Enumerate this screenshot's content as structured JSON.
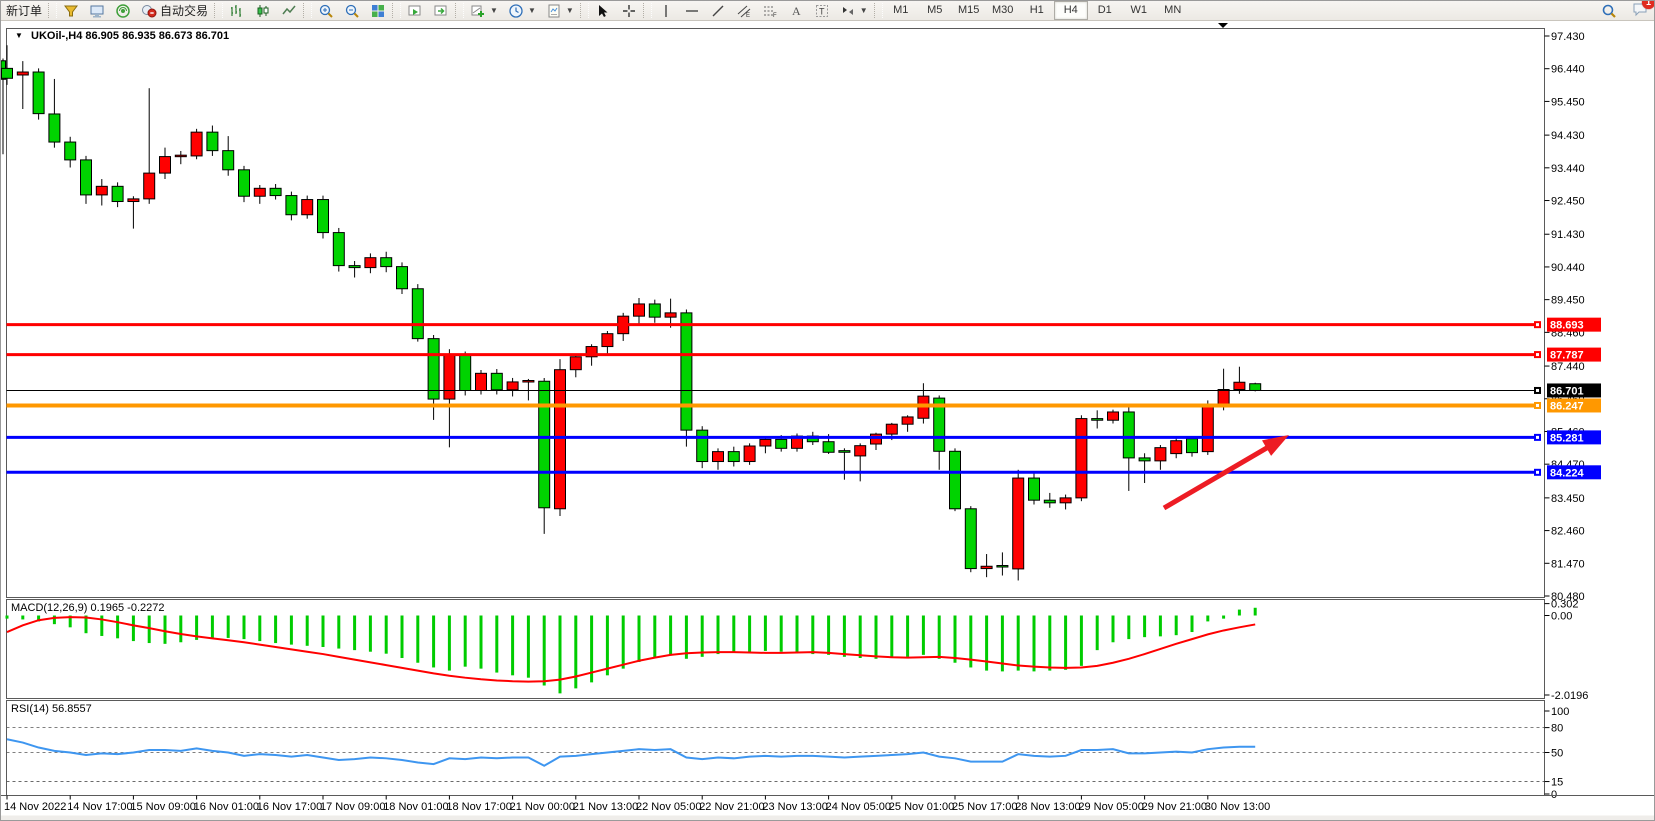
{
  "toolbar": {
    "new_order_label": "新订单",
    "autotrade_label": "自动交易",
    "icons_left": [
      "funnel-icon",
      "monitor-icon",
      "signal-icon",
      "autotrade-icon"
    ],
    "icons_chart": [
      "bar-chart-icon",
      "candle-chart-icon",
      "line-chart-icon"
    ],
    "icons_zoom": [
      "zoom-in-icon",
      "zoom-out-icon",
      "tile-windows-icon"
    ],
    "icons_profile": [
      "profile-charts-icon",
      "profile-next-icon"
    ],
    "icons_objects": [
      "add-indicator-icon",
      "period-clock-icon",
      "template-icon"
    ],
    "icons_cursor": [
      "cursor-icon",
      "crosshair-icon"
    ],
    "icons_draw": [
      "vertical-line-icon",
      "horizontal-line-icon",
      "trendline-icon",
      "channel-icon",
      "fibonacci-icon",
      "text-icon",
      "text-label-icon",
      "arrows-icon"
    ],
    "timeframes": [
      "M1",
      "M5",
      "M15",
      "M30",
      "H1",
      "H4",
      "D1",
      "W1",
      "MN"
    ],
    "active_timeframe": "H4",
    "search_icon": "search-icon",
    "chat_icon": "chat-icon",
    "chat_badge": "1"
  },
  "chart_data": {
    "type": "candlestick",
    "symbol_period": "UKOil-,H4",
    "ohlc_text": "86.905 86.935 86.673 86.701",
    "colors": {
      "up_candle": "#FF0000",
      "down_candle": "#00D300",
      "candle_border": "#000000",
      "macd_hist": "#00CC00",
      "macd_signal": "#FF0000",
      "rsi_line": "#3E96F0",
      "arrow": "#ED1C24"
    },
    "price_axis": {
      "range": [
        80.48,
        97.43
      ],
      "ticks": [
        "97.430",
        "96.440",
        "95.450",
        "94.430",
        "93.440",
        "92.450",
        "91.430",
        "90.440",
        "89.450",
        "88.460",
        "87.440",
        "86.450",
        "85.460",
        "84.470",
        "83.450",
        "82.460",
        "81.470",
        "80.480"
      ]
    },
    "hlines": [
      {
        "price": 88.693,
        "label": "88.693",
        "color": "#FF0000",
        "width": 3
      },
      {
        "price": 87.787,
        "label": "87.787",
        "color": "#FF0000",
        "width": 3
      },
      {
        "price": 86.701,
        "label": "86.701",
        "color": "#000000",
        "width": 1
      },
      {
        "price": 86.247,
        "label": "86.247",
        "color": "#FF9800",
        "width": 4
      },
      {
        "price": 85.281,
        "label": "85.281",
        "color": "#0000FF",
        "width": 3
      },
      {
        "price": 84.224,
        "label": "84.224",
        "color": "#0000FF",
        "width": 3
      }
    ],
    "time_axis": [
      "14 Nov 2022",
      "14 Nov 17:00",
      "15 Nov 09:00",
      "16 Nov 01:00",
      "16 Nov 17:00",
      "17 Nov 09:00",
      "18 Nov 01:00",
      "18 Nov 17:00",
      "21 Nov 00:00",
      "21 Nov 13:00",
      "22 Nov 05:00",
      "22 Nov 21:00",
      "23 Nov 13:00",
      "24 Nov 05:00",
      "25 Nov 01:00",
      "25 Nov 17:00",
      "28 Nov 13:00",
      "29 Nov 05:00",
      "29 Nov 21:00",
      "30 Nov 13:00"
    ],
    "clipped_candle": [
      96.68,
      96.75,
      93.85,
      96.12
    ],
    "candles": [
      [
        96.45,
        97.15,
        95.95,
        96.15
      ],
      [
        96.25,
        96.67,
        95.22,
        96.34
      ],
      [
        96.34,
        96.45,
        94.9,
        95.08
      ],
      [
        95.07,
        96.13,
        94.05,
        94.22
      ],
      [
        94.22,
        94.38,
        93.45,
        93.68
      ],
      [
        93.68,
        93.8,
        92.35,
        92.62
      ],
      [
        92.62,
        93.1,
        92.3,
        92.88
      ],
      [
        92.88,
        93.0,
        92.25,
        92.42
      ],
      [
        92.42,
        92.58,
        91.6,
        92.5
      ],
      [
        92.5,
        95.85,
        92.35,
        93.28
      ],
      [
        93.28,
        94.05,
        93.1,
        93.78
      ],
      [
        93.78,
        93.95,
        93.55,
        93.8
      ],
      [
        93.8,
        94.62,
        93.7,
        94.52
      ],
      [
        94.52,
        94.72,
        93.8,
        93.96
      ],
      [
        93.96,
        94.4,
        93.2,
        93.38
      ],
      [
        93.38,
        93.5,
        92.4,
        92.58
      ],
      [
        92.58,
        92.92,
        92.35,
        92.82
      ],
      [
        92.82,
        92.95,
        92.48,
        92.6
      ],
      [
        92.6,
        92.72,
        91.85,
        92.02
      ],
      [
        92.02,
        92.6,
        91.9,
        92.48
      ],
      [
        92.48,
        92.6,
        91.3,
        91.48
      ],
      [
        91.48,
        91.62,
        90.3,
        90.48
      ],
      [
        90.48,
        90.62,
        90.12,
        90.42
      ],
      [
        90.42,
        90.85,
        90.25,
        90.72
      ],
      [
        90.72,
        90.9,
        90.28,
        90.45
      ],
      [
        90.45,
        90.58,
        89.62,
        89.78
      ],
      [
        89.78,
        89.92,
        88.18,
        88.27
      ],
      [
        88.27,
        88.38,
        85.81,
        86.44
      ],
      [
        86.44,
        87.95,
        84.98,
        87.8
      ],
      [
        87.8,
        87.88,
        86.55,
        86.7
      ],
      [
        86.7,
        87.32,
        86.58,
        87.22
      ],
      [
        87.22,
        87.35,
        86.58,
        86.72
      ],
      [
        86.72,
        87.08,
        86.52,
        86.96
      ],
      [
        86.96,
        87.05,
        86.4,
        86.98
      ],
      [
        86.98,
        87.08,
        82.36,
        83.15
      ],
      [
        83.12,
        87.65,
        82.9,
        87.33
      ],
      [
        87.33,
        87.82,
        87.1,
        87.72
      ],
      [
        87.72,
        88.1,
        87.45,
        88.03
      ],
      [
        88.03,
        88.5,
        87.8,
        88.42
      ],
      [
        88.42,
        89.05,
        88.2,
        88.95
      ],
      [
        88.95,
        89.5,
        88.7,
        89.32
      ],
      [
        89.32,
        89.45,
        88.75,
        88.92
      ],
      [
        88.92,
        89.48,
        88.6,
        89.05
      ],
      [
        89.05,
        89.15,
        85.0,
        85.5
      ],
      [
        85.5,
        85.62,
        84.35,
        84.55
      ],
      [
        84.55,
        84.95,
        84.3,
        84.85
      ],
      [
        84.85,
        85.0,
        84.4,
        84.55
      ],
      [
        84.55,
        85.1,
        84.45,
        85.02
      ],
      [
        85.02,
        85.3,
        84.8,
        85.22
      ],
      [
        85.22,
        85.35,
        84.85,
        84.95
      ],
      [
        84.95,
        85.4,
        84.85,
        85.32
      ],
      [
        85.32,
        85.45,
        85.05,
        85.15
      ],
      [
        85.15,
        85.38,
        84.78,
        84.83
      ],
      [
        84.88,
        84.95,
        84.0,
        84.83
      ],
      [
        84.72,
        85.1,
        83.95,
        85.03
      ],
      [
        85.08,
        85.42,
        84.9,
        85.38
      ],
      [
        85.38,
        85.72,
        85.2,
        85.68
      ],
      [
        85.68,
        85.95,
        85.45,
        85.9
      ],
      [
        85.86,
        86.92,
        85.7,
        86.53
      ],
      [
        86.47,
        86.55,
        84.3,
        84.86
      ],
      [
        84.86,
        84.95,
        83.05,
        83.12
      ],
      [
        83.12,
        83.2,
        81.2,
        81.31
      ],
      [
        81.31,
        81.75,
        81.05,
        81.38
      ],
      [
        81.38,
        81.8,
        81.1,
        81.35
      ],
      [
        81.3,
        84.3,
        80.95,
        84.05
      ],
      [
        84.05,
        84.2,
        83.25,
        83.38
      ],
      [
        83.38,
        83.6,
        83.15,
        83.3
      ],
      [
        83.3,
        83.55,
        83.1,
        83.45
      ],
      [
        83.45,
        85.95,
        83.35,
        85.85
      ],
      [
        85.85,
        86.1,
        85.55,
        85.8
      ],
      [
        85.8,
        86.12,
        85.7,
        86.05
      ],
      [
        86.05,
        86.2,
        83.66,
        84.66
      ],
      [
        84.66,
        84.8,
        83.9,
        84.57
      ],
      [
        84.57,
        85.05,
        84.3,
        84.97
      ],
      [
        84.79,
        85.25,
        84.65,
        85.18
      ],
      [
        85.24,
        85.32,
        84.7,
        84.82
      ],
      [
        84.85,
        86.4,
        84.75,
        86.22
      ],
      [
        86.22,
        87.36,
        86.1,
        86.73
      ],
      [
        86.73,
        87.42,
        86.6,
        86.95
      ],
      [
        86.905,
        86.935,
        86.673,
        86.701
      ]
    ],
    "indicators": {
      "macd": {
        "label": "MACD(12,26,9)",
        "values_text": "0.1965 -0.2272",
        "axis": [
          "0.302",
          "0.00",
          "-2.0196"
        ],
        "histogram": [
          -0.08,
          -0.1,
          -0.15,
          -0.22,
          -0.3,
          -0.45,
          -0.52,
          -0.58,
          -0.65,
          -0.7,
          -0.72,
          -0.68,
          -0.62,
          -0.58,
          -0.57,
          -0.6,
          -0.65,
          -0.7,
          -0.74,
          -0.77,
          -0.8,
          -0.84,
          -0.88,
          -0.92,
          -0.97,
          -1.08,
          -1.2,
          -1.32,
          -1.4,
          -1.3,
          -1.35,
          -1.45,
          -1.52,
          -1.58,
          -1.78,
          -1.98,
          -1.85,
          -1.7,
          -1.52,
          -1.35,
          -1.18,
          -1.08,
          -1.02,
          -1.1,
          -1.05,
          -0.98,
          -0.95,
          -0.92,
          -0.9,
          -0.92,
          -0.95,
          -0.98,
          -1.0,
          -1.05,
          -1.08,
          -1.1,
          -1.08,
          -1.05,
          -1.0,
          -1.1,
          -1.2,
          -1.32,
          -1.4,
          -1.42,
          -1.4,
          -1.42,
          -1.4,
          -1.38,
          -1.28,
          -0.88,
          -0.68,
          -0.6,
          -0.55,
          -0.53,
          -0.5,
          -0.42,
          -0.15,
          -0.08,
          0.15,
          0.1965
        ],
        "signal": [
          -0.42,
          -0.25,
          -0.12,
          -0.06,
          -0.04,
          -0.05,
          -0.1,
          -0.17,
          -0.25,
          -0.32,
          -0.4,
          -0.47,
          -0.53,
          -0.58,
          -0.63,
          -0.68,
          -0.74,
          -0.8,
          -0.86,
          -0.92,
          -0.98,
          -1.05,
          -1.12,
          -1.19,
          -1.26,
          -1.33,
          -1.4,
          -1.47,
          -1.53,
          -1.58,
          -1.62,
          -1.65,
          -1.67,
          -1.68,
          -1.67,
          -1.63,
          -1.55,
          -1.45,
          -1.35,
          -1.25,
          -1.15,
          -1.07,
          -1.0,
          -0.96,
          -0.94,
          -0.93,
          -0.93,
          -0.94,
          -0.95,
          -0.95,
          -0.94,
          -0.93,
          -0.95,
          -0.98,
          -1.01,
          -1.04,
          -1.06,
          -1.07,
          -1.06,
          -1.05,
          -1.08,
          -1.12,
          -1.17,
          -1.22,
          -1.27,
          -1.3,
          -1.32,
          -1.33,
          -1.32,
          -1.28,
          -1.2,
          -1.1,
          -0.98,
          -0.85,
          -0.72,
          -0.6,
          -0.48,
          -0.38,
          -0.3,
          -0.2272
        ]
      },
      "rsi": {
        "label": "RSI(14)",
        "value_text": "56.8557",
        "axis": [
          "100",
          "80",
          "50",
          "15",
          "0"
        ],
        "levels": [
          80,
          50,
          15
        ],
        "values": [
          66,
          62,
          56,
          52,
          50,
          47,
          49,
          48,
          50,
          53,
          53,
          52,
          55,
          52,
          50,
          46,
          48,
          47,
          45,
          47,
          44,
          41,
          42,
          44,
          43,
          41,
          38,
          36,
          43,
          42,
          44,
          43,
          44,
          44,
          34,
          45,
          46,
          48,
          50,
          52,
          54,
          53,
          54,
          44,
          42,
          44,
          43,
          45,
          46,
          45,
          46,
          46,
          45,
          44,
          45,
          46,
          47,
          48,
          50,
          45,
          43,
          39,
          39,
          39,
          48,
          46,
          45,
          46,
          53,
          53,
          54,
          49,
          49,
          50,
          51,
          50,
          54,
          56,
          57,
          56.86
        ]
      }
    },
    "annotation_arrow": {
      "from": [
        1163,
        507
      ],
      "tip": [
        1288,
        434
      ]
    }
  }
}
